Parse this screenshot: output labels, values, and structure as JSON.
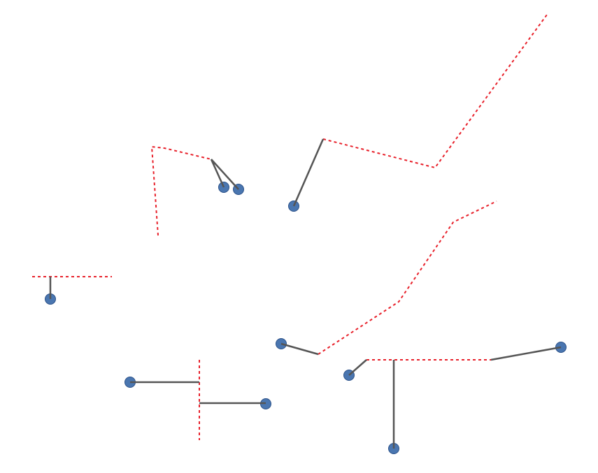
{
  "colors": {
    "line": "#e8202a",
    "connector": "#555555",
    "point_fill": "#4a76b0",
    "point_stroke": "#2c5289",
    "background": "#ffffff"
  },
  "styles": {
    "line_style": "dotted",
    "connector_style": "solid"
  }
}
